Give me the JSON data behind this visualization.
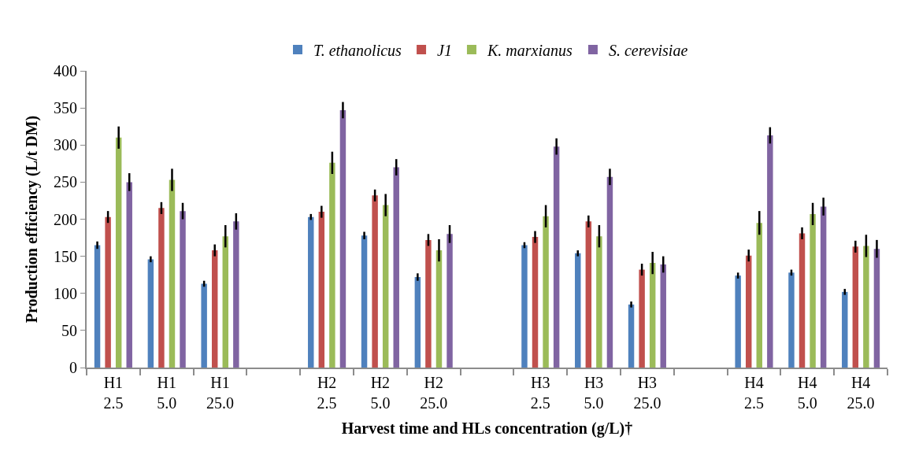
{
  "chart_data": {
    "type": "bar",
    "xlabel": "Harvest time and HLs concentration (g/L)†",
    "ylabel": "Production efficiency (L/t DM)",
    "categories": [
      "H1\n2.5",
      "H1\n5.0",
      "H1\n25.0",
      null,
      "H2\n2.5",
      "H2\n5.0",
      "H2\n25.0",
      null,
      "H3\n2.5",
      "H3\n5.0",
      "H3\n25.0",
      null,
      "H4\n2.5",
      "H4\n5.0",
      "H4\n25.0"
    ],
    "series": [
      {
        "name": "T. ethanolicus",
        "color": "#4f81bd",
        "values": [
          165,
          146,
          113,
          null,
          203,
          178,
          122,
          null,
          165,
          154,
          85,
          null,
          124,
          128,
          102
        ],
        "errors": [
          5,
          4,
          4,
          null,
          4,
          5,
          5,
          null,
          4,
          4,
          4,
          null,
          4,
          4,
          4
        ]
      },
      {
        "name": "J1",
        "color": "#c0504d",
        "values": [
          203,
          215,
          158,
          null,
          210,
          232,
          172,
          null,
          176,
          197,
          132,
          null,
          151,
          181,
          163
        ],
        "errors": [
          8,
          8,
          8,
          null,
          8,
          8,
          8,
          null,
          8,
          8,
          8,
          null,
          8,
          8,
          8
        ]
      },
      {
        "name": "K. marxianus",
        "color": "#9bbb59",
        "values": [
          310,
          253,
          177,
          null,
          276,
          219,
          158,
          null,
          204,
          177,
          141,
          null,
          195,
          207,
          164
        ],
        "errors": [
          15,
          15,
          15,
          null,
          15,
          15,
          15,
          null,
          15,
          15,
          15,
          null,
          16,
          15,
          15
        ]
      },
      {
        "name": "S. cerevisiae",
        "color": "#8064a2",
        "values": [
          250,
          211,
          197,
          null,
          347,
          270,
          180,
          null,
          298,
          257,
          139,
          null,
          313,
          217,
          160
        ],
        "errors": [
          12,
          11,
          11,
          null,
          11,
          11,
          12,
          null,
          11,
          11,
          11,
          null,
          11,
          12,
          12
        ]
      }
    ],
    "ylim": [
      0,
      400
    ],
    "yticks": [
      0,
      50,
      100,
      150,
      200,
      250,
      300,
      350,
      400
    ],
    "legend": "top"
  }
}
